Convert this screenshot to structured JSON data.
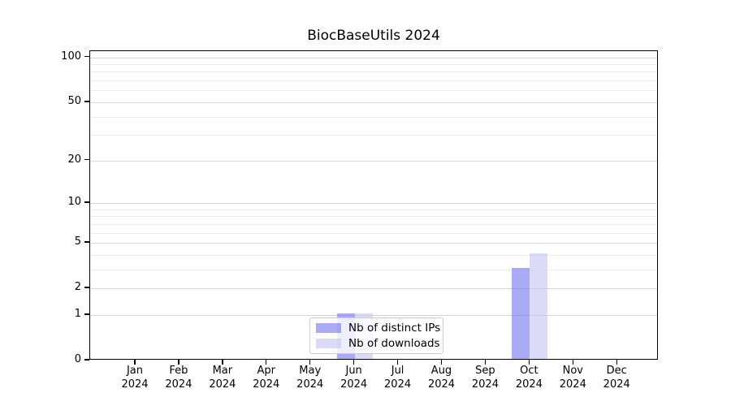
{
  "figure": {
    "title": "BiocBaseUtils 2024",
    "background": "#ffffff"
  },
  "chart_data": {
    "type": "bar",
    "title": "BiocBaseUtils 2024",
    "categories": [
      "Jan",
      "Feb",
      "Mar",
      "Apr",
      "May",
      "Jun",
      "Jul",
      "Aug",
      "Sep",
      "Oct",
      "Nov",
      "Dec"
    ],
    "x_year": "2024",
    "series": [
      {
        "name": "Nb of distinct IPs",
        "values": [
          0,
          0,
          0,
          0,
          0,
          1,
          0,
          0,
          0,
          3,
          0,
          0
        ],
        "color": "#7c7cf0",
        "alpha": 0.65,
        "display_color": "#aaaaf5"
      },
      {
        "name": "Nb of downloads",
        "values": [
          0,
          0,
          0,
          0,
          0,
          1,
          0,
          0,
          0,
          4,
          0,
          0
        ],
        "color": "#c8c8f4",
        "alpha": 0.65,
        "display_color": "#dbdbf8"
      }
    ],
    "y_scale": "log10(1+x)",
    "y_ticks": [
      0,
      1,
      2,
      5,
      10,
      20,
      50,
      100
    ],
    "y_minor_gridlines": [
      3,
      4,
      6,
      7,
      8,
      9,
      30,
      40,
      60,
      70,
      80,
      90
    ],
    "ylim": [
      0,
      110
    ],
    "grid": true,
    "legend_position": "lower center",
    "colors": {
      "major_gridline": "#d4d4d4",
      "minor_gridline": "#ebebeb",
      "axis": "#000000",
      "text": "#000000"
    }
  },
  "legend": {
    "items": [
      "Nb of distinct IPs",
      "Nb of downloads"
    ]
  }
}
